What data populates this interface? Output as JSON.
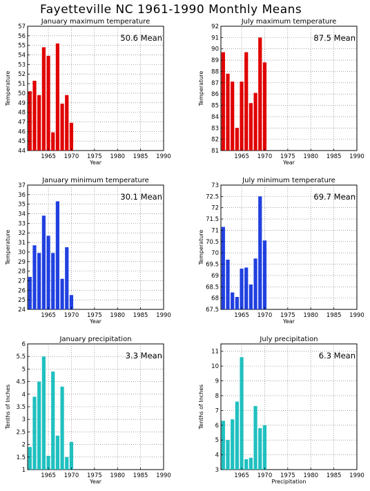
{
  "page": {
    "title": "Fayetteville NC   1961-1990 Monthly Means"
  },
  "chart_data": [
    {
      "type": "bar",
      "title": "January maximum temperature",
      "mean_label": "50.6 Mean",
      "xlabel": "Year",
      "ylabel": "Temperature",
      "color": "#e00000",
      "xlim": [
        1960.5,
        1990
      ],
      "ylim": [
        44,
        57
      ],
      "yticks": [
        44,
        45,
        46,
        47,
        48,
        49,
        50,
        51,
        52,
        53,
        54,
        55,
        56,
        57
      ],
      "xticks": [
        1965,
        1970,
        1975,
        1980,
        1985,
        1990
      ],
      "x": [
        1961,
        1962,
        1963,
        1964,
        1965,
        1966,
        1967,
        1968,
        1969,
        1970
      ],
      "values": [
        50.2,
        51.3,
        49.8,
        54.8,
        53.9,
        45.9,
        55.2,
        48.9,
        49.8,
        46.9
      ]
    },
    {
      "type": "bar",
      "title": "July maximum temperature",
      "mean_label": "87.5 Mean",
      "xlabel": "Year",
      "ylabel": "Temperature",
      "color": "#e00000",
      "xlim": [
        1960.5,
        1990
      ],
      "ylim": [
        81,
        92
      ],
      "yticks": [
        81,
        82,
        83,
        84,
        85,
        86,
        87,
        88,
        89,
        90,
        91,
        92
      ],
      "xticks": [
        1965,
        1970,
        1975,
        1980,
        1985,
        1990
      ],
      "x": [
        1961,
        1962,
        1963,
        1964,
        1965,
        1966,
        1967,
        1968,
        1969,
        1970
      ],
      "values": [
        89.7,
        87.8,
        87.1,
        83.0,
        87.1,
        89.7,
        85.2,
        86.1,
        91.0,
        88.8
      ]
    },
    {
      "type": "bar",
      "title": "January minimum temperature",
      "mean_label": "30.1 Mean",
      "xlabel": "Year",
      "ylabel": "Temperature",
      "color": "#2040e0",
      "xlim": [
        1960.5,
        1990
      ],
      "ylim": [
        24,
        37
      ],
      "yticks": [
        24,
        25,
        26,
        27,
        28,
        29,
        30,
        31,
        32,
        33,
        34,
        35,
        36,
        37
      ],
      "xticks": [
        1965,
        1970,
        1975,
        1980,
        1985,
        1990
      ],
      "x": [
        1961,
        1962,
        1963,
        1964,
        1965,
        1966,
        1967,
        1968,
        1969,
        1970
      ],
      "values": [
        27.4,
        30.7,
        29.9,
        33.8,
        31.7,
        29.9,
        35.3,
        27.2,
        30.5,
        25.5
      ]
    },
    {
      "type": "bar",
      "title": "July minimum temperature",
      "mean_label": "69.7 Mean",
      "xlabel": "Year",
      "ylabel": "Temperature",
      "color": "#2040e0",
      "xlim": [
        1960.5,
        1990
      ],
      "ylim": [
        67.5,
        73
      ],
      "yticks": [
        67.5,
        68,
        68.5,
        69,
        69.5,
        70,
        70.5,
        71,
        71.5,
        72,
        72.5,
        73
      ],
      "xticks": [
        1965,
        1970,
        1975,
        1980,
        1985,
        1990
      ],
      "x": [
        1961,
        1962,
        1963,
        1964,
        1965,
        1966,
        1967,
        1968,
        1969,
        1970
      ],
      "values": [
        71.15,
        69.7,
        68.25,
        68.05,
        69.3,
        69.35,
        68.6,
        69.75,
        72.5,
        70.55
      ]
    },
    {
      "type": "bar",
      "title": "January precipitation",
      "mean_label": "3.3 Mean",
      "xlabel": "Year",
      "ylabel": "Tenths of Inches",
      "color": "#20c0c0",
      "xlim": [
        1960.5,
        1990
      ],
      "ylim": [
        1,
        6
      ],
      "yticks": [
        1,
        1.5,
        2,
        2.5,
        3,
        3.5,
        4,
        4.5,
        5,
        5.5,
        6
      ],
      "xticks": [
        1965,
        1970,
        1975,
        1980,
        1985,
        1990
      ],
      "x": [
        1961,
        1962,
        1963,
        1964,
        1965,
        1966,
        1967,
        1968,
        1969,
        1970
      ],
      "values": [
        1.9,
        3.9,
        4.5,
        5.5,
        1.55,
        4.9,
        2.35,
        4.3,
        1.5,
        2.1
      ]
    },
    {
      "type": "bar",
      "title": "July precipitation",
      "mean_label": "6.3 Mean",
      "xlabel": "Precipitation",
      "ylabel": "Tenths of Inches",
      "color": "#20c0c0",
      "xlim": [
        1960.5,
        1990
      ],
      "ylim": [
        3,
        11.5
      ],
      "yticks": [
        3,
        4,
        5,
        6,
        7,
        8,
        9,
        10,
        11
      ],
      "xticks": [
        1965,
        1970,
        1975,
        1980,
        1985,
        1990
      ],
      "x": [
        1961,
        1962,
        1963,
        1964,
        1965,
        1966,
        1967,
        1968,
        1969,
        1970
      ],
      "values": [
        6.3,
        5.0,
        6.4,
        7.6,
        10.6,
        3.7,
        3.8,
        7.3,
        5.8,
        6.0
      ]
    }
  ]
}
